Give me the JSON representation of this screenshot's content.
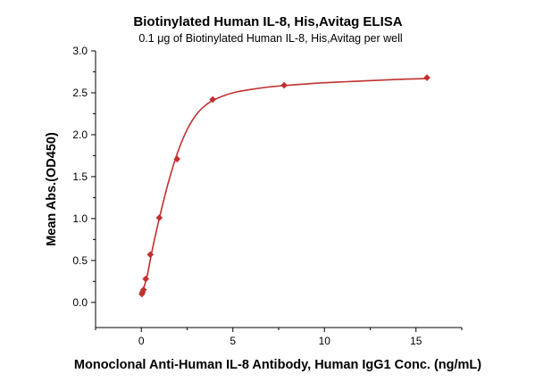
{
  "chart_data": {
    "type": "scatter",
    "title": "Biotinylated Human IL-8, His,Avitag ELISA",
    "subtitle": "0.1 μg of Biotinylated Human IL-8, His,Avitag per well",
    "xlabel": "Monoclonal Anti-Human IL-8 Antibody, Human IgG1 Conc. (ng/mL)",
    "ylabel": "Mean Abs.(OD450)",
    "xlim": [
      -2.5,
      17.5
    ],
    "ylim": [
      -0.3,
      3.0
    ],
    "xticks": [
      0,
      5,
      10,
      15
    ],
    "xtick_labels": [
      "0",
      "5",
      "10",
      "15"
    ],
    "yticks": [
      0.0,
      0.5,
      1.0,
      1.5,
      2.0,
      2.5,
      3.0
    ],
    "ytick_labels": [
      "0.0",
      "0.5",
      "1.0",
      "1.5",
      "2.0",
      "2.5",
      "3.0"
    ],
    "grid": false,
    "legend": false,
    "color": "#c0312f",
    "series": [
      {
        "x": [
          0.03,
          0.06,
          0.12,
          0.24,
          0.49,
          0.98,
          1.95,
          3.9,
          7.8,
          15.6
        ],
        "y": [
          0.1,
          0.12,
          0.15,
          0.28,
          0.57,
          1.01,
          1.71,
          2.42,
          2.59,
          2.68
        ]
      }
    ],
    "fit_curve": {
      "x": [
        0.0,
        0.3,
        0.6,
        1.0,
        1.5,
        2.0,
        2.5,
        3.0,
        3.5,
        4.0,
        5.0,
        6.0,
        7.0,
        8.0,
        10.0,
        12.0,
        14.0,
        15.6
      ],
      "y": [
        0.09,
        0.3,
        0.63,
        1.02,
        1.45,
        1.8,
        2.06,
        2.24,
        2.35,
        2.42,
        2.5,
        2.54,
        2.57,
        2.59,
        2.62,
        2.64,
        2.66,
        2.67
      ]
    }
  }
}
